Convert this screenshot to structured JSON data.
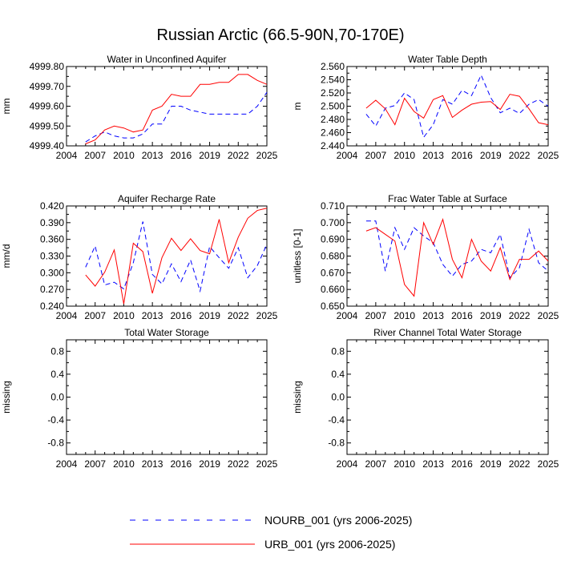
{
  "figure": {
    "title": "Russian Arctic (66.5-90N,70-170E)"
  },
  "legend": {
    "entries": [
      {
        "label": "NOURB_001 (yrs 2006-2025)",
        "color": "#0000ff",
        "dash": "dashed"
      },
      {
        "label": "URB_001 (yrs 2006-2025)",
        "color": "#ff0000",
        "dash": "solid"
      }
    ]
  },
  "chart_data": [
    {
      "type": "line",
      "title": "Water in Unconfined Aquifer",
      "ylabel": "mm",
      "xlim": [
        2004,
        2025
      ],
      "xticks": [
        "2004",
        "2007",
        "2010",
        "2013",
        "2016",
        "2019",
        "2022",
        "2025"
      ],
      "xtick_values": [
        2004,
        2007,
        2010,
        2013,
        2016,
        2019,
        2022,
        2025
      ],
      "ylim": [
        4999.4,
        4999.8
      ],
      "yticks": [
        "4999.40",
        "4999.50",
        "4999.60",
        "4999.70",
        "4999.80"
      ],
      "ytick_values": [
        4999.4,
        4999.5,
        4999.6,
        4999.7,
        4999.8
      ],
      "x": [
        2006,
        2007,
        2008,
        2009,
        2010,
        2011,
        2012,
        2013,
        2014,
        2015,
        2016,
        2017,
        2018,
        2019,
        2020,
        2021,
        2022,
        2023,
        2024,
        2025
      ],
      "series": [
        {
          "name": "NOURB_001",
          "color": "#0000ff",
          "dash": true,
          "values": [
            4999.42,
            4999.45,
            4999.47,
            4999.45,
            4999.44,
            4999.44,
            4999.46,
            4999.51,
            4999.51,
            4999.6,
            4999.6,
            4999.58,
            4999.57,
            4999.56,
            4999.56,
            4999.56,
            4999.56,
            4999.56,
            4999.6,
            4999.67
          ]
        },
        {
          "name": "URB_001",
          "color": "#ff0000",
          "dash": false,
          "values": [
            4999.41,
            4999.43,
            4999.48,
            4999.5,
            4999.49,
            4999.47,
            4999.48,
            4999.58,
            4999.6,
            4999.66,
            4999.65,
            4999.65,
            4999.71,
            4999.71,
            4999.72,
            4999.72,
            4999.76,
            4999.76,
            4999.73,
            4999.71
          ]
        }
      ]
    },
    {
      "type": "line",
      "title": "Water Table Depth",
      "ylabel": "m",
      "xlim": [
        2004,
        2025
      ],
      "xticks": [
        "2004",
        "2007",
        "2010",
        "2013",
        "2016",
        "2019",
        "2022",
        "2025"
      ],
      "xtick_values": [
        2004,
        2007,
        2010,
        2013,
        2016,
        2019,
        2022,
        2025
      ],
      "ylim": [
        2.44,
        2.56
      ],
      "yticks": [
        "2.440",
        "2.460",
        "2.480",
        "2.500",
        "2.520",
        "2.540",
        "2.560"
      ],
      "ytick_values": [
        2.44,
        2.46,
        2.48,
        2.5,
        2.52,
        2.54,
        2.56
      ],
      "x": [
        2006,
        2007,
        2008,
        2009,
        2010,
        2011,
        2012,
        2013,
        2014,
        2015,
        2016,
        2017,
        2018,
        2019,
        2020,
        2021,
        2022,
        2023,
        2024,
        2025
      ],
      "series": [
        {
          "name": "NOURB_001",
          "color": "#0000ff",
          "dash": true,
          "values": [
            2.488,
            2.47,
            2.497,
            2.501,
            2.52,
            2.51,
            2.453,
            2.472,
            2.51,
            2.503,
            2.524,
            2.516,
            2.547,
            2.513,
            2.49,
            2.497,
            2.489,
            2.503,
            2.51,
            2.5
          ]
        },
        {
          "name": "URB_001",
          "color": "#ff0000",
          "dash": false,
          "values": [
            2.497,
            2.509,
            2.496,
            2.472,
            2.512,
            2.492,
            2.482,
            2.51,
            2.516,
            2.483,
            2.494,
            2.503,
            2.506,
            2.507,
            2.495,
            2.518,
            2.515,
            2.496,
            2.475,
            2.472
          ]
        }
      ]
    },
    {
      "type": "line",
      "title": "Aquifer Recharge Rate",
      "ylabel": "mm/d",
      "xlim": [
        2004,
        2025
      ],
      "xticks": [
        "2004",
        "2007",
        "2010",
        "2013",
        "2016",
        "2019",
        "2022",
        "2025"
      ],
      "xtick_values": [
        2004,
        2007,
        2010,
        2013,
        2016,
        2019,
        2022,
        2025
      ],
      "ylim": [
        0.24,
        0.42
      ],
      "yticks": [
        "0.240",
        "0.270",
        "0.300",
        "0.330",
        "0.360",
        "0.390",
        "0.420"
      ],
      "ytick_values": [
        0.24,
        0.27,
        0.3,
        0.33,
        0.36,
        0.39,
        0.42
      ],
      "x": [
        2006,
        2007,
        2008,
        2009,
        2010,
        2011,
        2012,
        2013,
        2014,
        2015,
        2016,
        2017,
        2018,
        2019,
        2020,
        2021,
        2022,
        2023,
        2024,
        2025
      ],
      "series": [
        {
          "name": "NOURB_001",
          "color": "#0000ff",
          "dash": true,
          "values": [
            0.31,
            0.348,
            0.278,
            0.283,
            0.271,
            0.318,
            0.392,
            0.297,
            0.28,
            0.316,
            0.284,
            0.323,
            0.267,
            0.347,
            0.327,
            0.308,
            0.345,
            0.291,
            0.313,
            0.351
          ]
        },
        {
          "name": "URB_001",
          "color": "#ff0000",
          "dash": false,
          "values": [
            0.296,
            0.276,
            0.301,
            0.341,
            0.244,
            0.353,
            0.338,
            0.263,
            0.327,
            0.362,
            0.34,
            0.361,
            0.34,
            0.334,
            0.396,
            0.318,
            0.364,
            0.398,
            0.412,
            0.416
          ]
        }
      ]
    },
    {
      "type": "line",
      "title": "Frac Water Table at Surface",
      "ylabel": "unitless [0-1]",
      "xlim": [
        2004,
        2025
      ],
      "xticks": [
        "2004",
        "2007",
        "2010",
        "2013",
        "2016",
        "2019",
        "2022",
        "2025"
      ],
      "xtick_values": [
        2004,
        2007,
        2010,
        2013,
        2016,
        2019,
        2022,
        2025
      ],
      "ylim": [
        0.65,
        0.71
      ],
      "yticks": [
        "0.650",
        "0.660",
        "0.670",
        "0.680",
        "0.690",
        "0.700",
        "0.710"
      ],
      "ytick_values": [
        0.65,
        0.66,
        0.67,
        0.68,
        0.69,
        0.7,
        0.71
      ],
      "x": [
        2006,
        2007,
        2008,
        2009,
        2010,
        2011,
        2012,
        2013,
        2014,
        2015,
        2016,
        2017,
        2018,
        2019,
        2020,
        2021,
        2022,
        2023,
        2024,
        2025
      ],
      "series": [
        {
          "name": "NOURB_001",
          "color": "#0000ff",
          "dash": true,
          "values": [
            0.701,
            0.701,
            0.671,
            0.697,
            0.684,
            0.697,
            0.692,
            0.688,
            0.675,
            0.668,
            0.675,
            0.677,
            0.684,
            0.682,
            0.693,
            0.667,
            0.673,
            0.696,
            0.676,
            0.671
          ]
        },
        {
          "name": "URB_001",
          "color": "#ff0000",
          "dash": false,
          "values": [
            0.695,
            0.697,
            0.693,
            0.689,
            0.663,
            0.656,
            0.7,
            0.687,
            0.702,
            0.678,
            0.667,
            0.69,
            0.677,
            0.671,
            0.685,
            0.666,
            0.678,
            0.678,
            0.683,
            0.677
          ]
        }
      ]
    },
    {
      "type": "line",
      "title": "Total Water Storage",
      "ylabel": "missing",
      "xlim": [
        2004,
        2025
      ],
      "xticks": [
        "2004",
        "2007",
        "2010",
        "2013",
        "2016",
        "2019",
        "2022",
        "2025"
      ],
      "xtick_values": [
        2004,
        2007,
        2010,
        2013,
        2016,
        2019,
        2022,
        2025
      ],
      "ylim": [
        -1.0,
        1.0
      ],
      "yticks": [
        "-0.8",
        "-0.4",
        "0.0",
        "0.4",
        "0.8"
      ],
      "ytick_values": [
        -0.8,
        -0.4,
        0.0,
        0.4,
        0.8
      ],
      "x": [],
      "series": []
    },
    {
      "type": "line",
      "title": "River Channel Total Water Storage",
      "ylabel": "missing",
      "xlim": [
        2004,
        2025
      ],
      "xticks": [
        "2004",
        "2007",
        "2010",
        "2013",
        "2016",
        "2019",
        "2022",
        "2025"
      ],
      "xtick_values": [
        2004,
        2007,
        2010,
        2013,
        2016,
        2019,
        2022,
        2025
      ],
      "ylim": [
        -1.0,
        1.0
      ],
      "yticks": [
        "-0.8",
        "-0.4",
        "0.0",
        "0.4",
        "0.8"
      ],
      "ytick_values": [
        -0.8,
        -0.4,
        0.0,
        0.4,
        0.8
      ],
      "x": [],
      "series": []
    }
  ]
}
